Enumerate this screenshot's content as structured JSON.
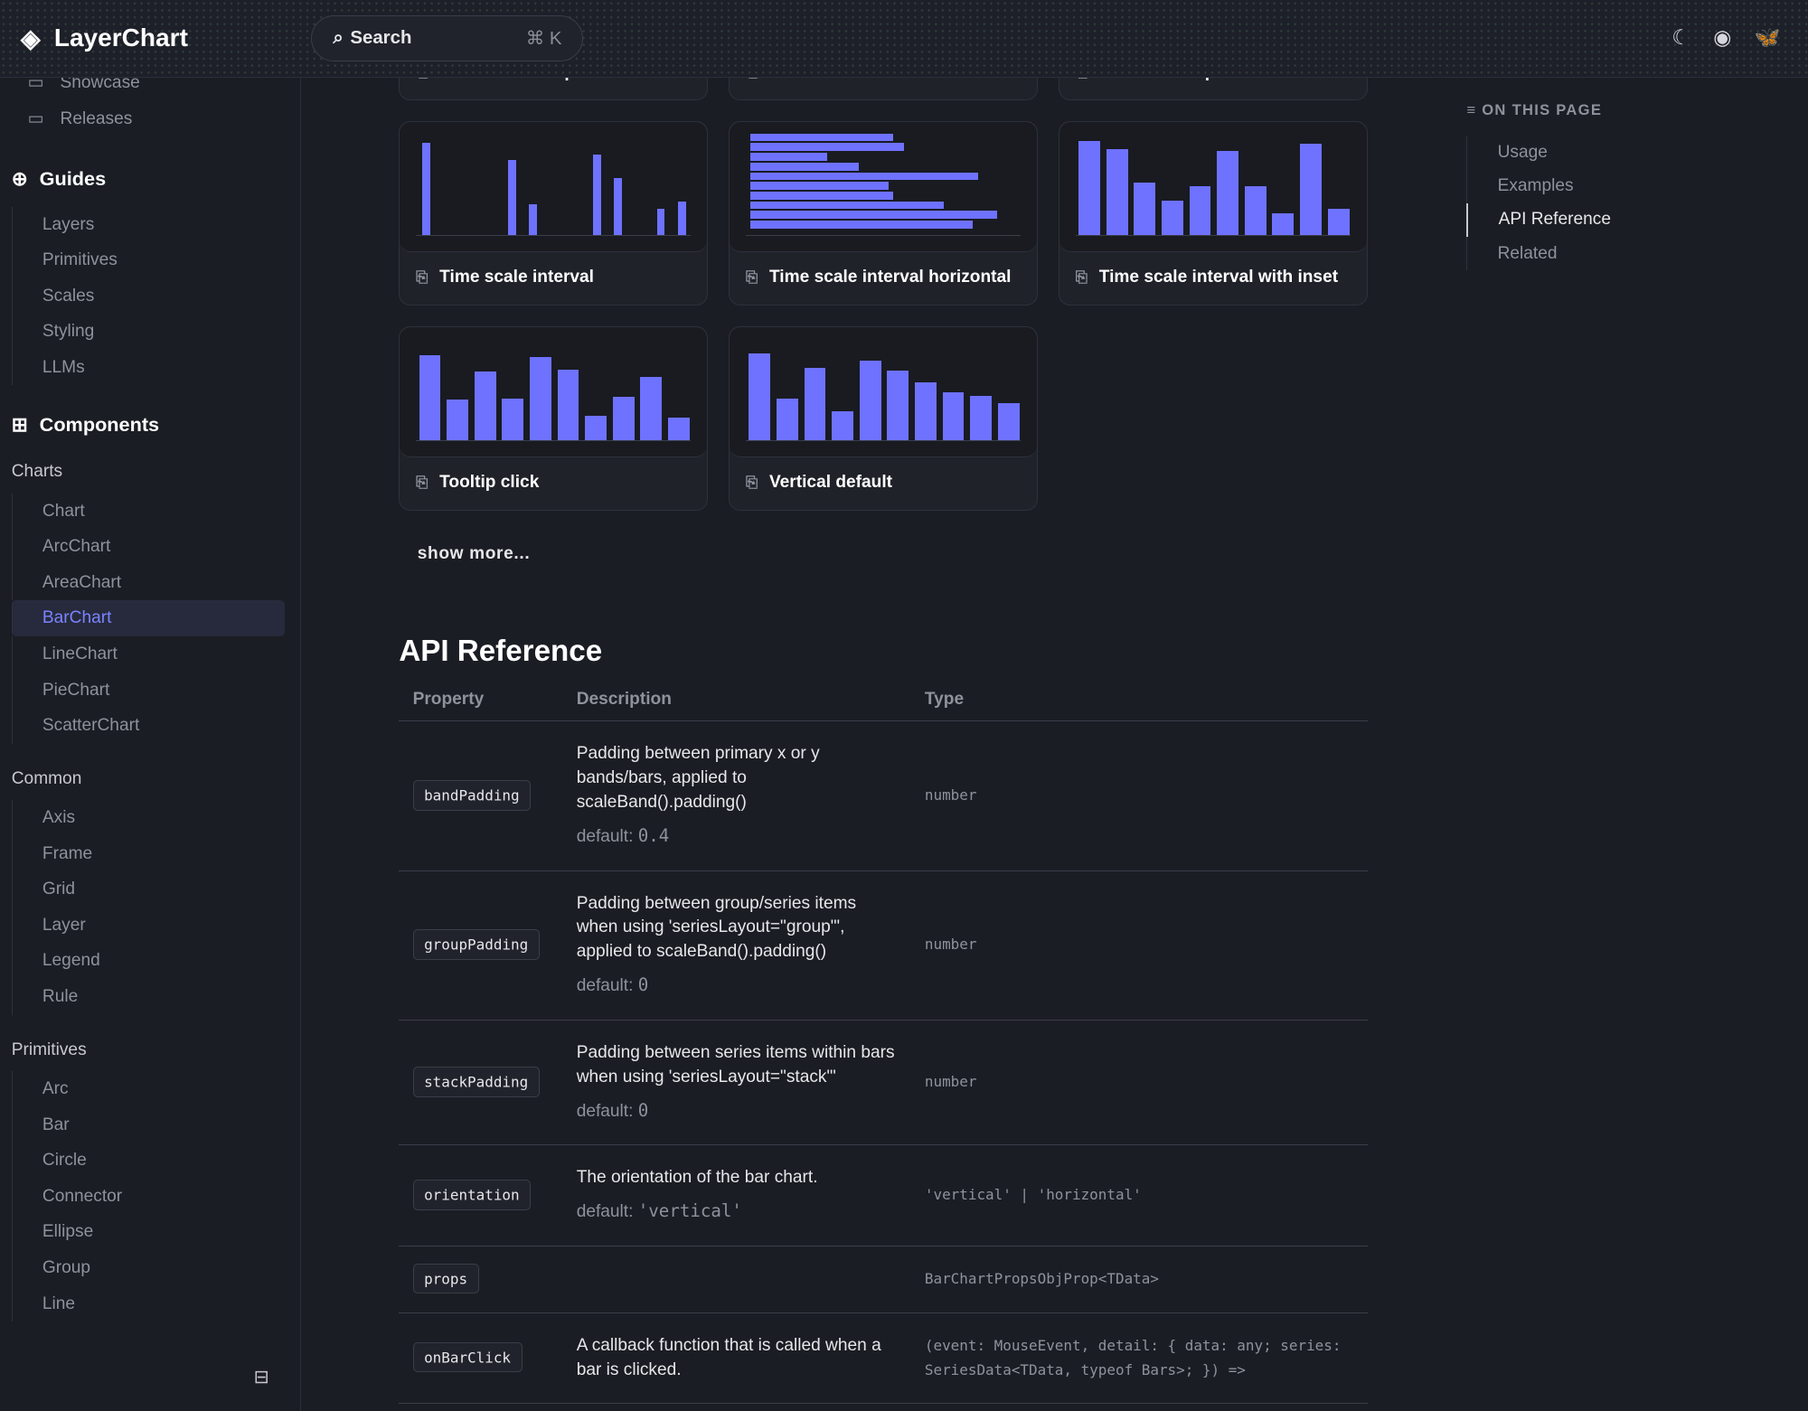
{
  "header": {
    "brand": "LayerChart",
    "search_label": "Search",
    "search_shortcut": "⌘ K"
  },
  "sidebar": {
    "top_items": [
      {
        "label": "Showcase",
        "icon": "monitor-icon"
      },
      {
        "label": "Releases",
        "icon": "notebook-icon"
      }
    ],
    "guides": {
      "title": "Guides",
      "items": [
        "Layers",
        "Primitives",
        "Scales",
        "Styling",
        "LLMs"
      ]
    },
    "components": {
      "title": "Components"
    },
    "charts": {
      "title": "Charts",
      "items": [
        "Chart",
        "ArcChart",
        "AreaChart",
        "BarChart",
        "LineChart",
        "PieChart",
        "ScatterChart"
      ],
      "active": "BarChart"
    },
    "common": {
      "title": "Common",
      "items": [
        "Axis",
        "Frame",
        "Grid",
        "Layer",
        "Legend",
        "Rule"
      ]
    },
    "primitives": {
      "title": "Primitives",
      "items": [
        "Arc",
        "Bar",
        "Circle",
        "Connector",
        "Ellipse",
        "Group",
        "Line"
      ]
    }
  },
  "examples": {
    "partial": [
      "Stack series expand",
      "Stack series horizontal",
      "Stack series padded"
    ],
    "cards": [
      {
        "label": "Time scale interval",
        "orientation": "vertical",
        "slots": 13,
        "values": [
          9.5,
          0,
          0,
          0,
          7.7,
          3.2,
          0,
          0,
          8.3,
          5.9,
          0,
          2.7,
          3.4
        ]
      },
      {
        "label": "Time scale interval horizontal",
        "orientation": "horizontal",
        "values": [
          5.4,
          5.8,
          2.9,
          4.1,
          8.6,
          5.2,
          5.4,
          7.3,
          9.3,
          8.4
        ]
      },
      {
        "label": "Time scale interval with inset",
        "orientation": "vertical",
        "values": [
          9.7,
          8.9,
          5.4,
          3.5,
          5.0,
          8.7,
          5.0,
          2.2,
          9.4,
          2.7
        ]
      },
      {
        "label": "Tooltip click",
        "orientation": "vertical",
        "values": [
          8.8,
          4.2,
          7.1,
          4.3,
          8.6,
          7.3,
          2.5,
          4.5,
          6.5,
          2.3
        ]
      },
      {
        "label": "Vertical default",
        "orientation": "vertical",
        "values": [
          9.0,
          4.3,
          7.5,
          3.0,
          8.2,
          7.2,
          6.0,
          4.9,
          4.6,
          3.8
        ]
      }
    ],
    "bar_color": "#6e72ff",
    "show_more": "show more..."
  },
  "api": {
    "title": "API Reference",
    "columns": [
      "Property",
      "Description",
      "Type"
    ],
    "rows": [
      {
        "prop": "bandPadding",
        "desc": "Padding between primary x or y bands/bars, applied to scaleBand().padding()",
        "default_label": "default:",
        "default": "0.4",
        "type": "number"
      },
      {
        "prop": "groupPadding",
        "desc": "Padding between group/series items when using 'seriesLayout=\"group\"', applied to scaleBand().padding()",
        "default_label": "default:",
        "default": "0",
        "type": "number"
      },
      {
        "prop": "stackPadding",
        "desc": "Padding between series items within bars when using 'seriesLayout=\"stack\"'",
        "default_label": "default:",
        "default": "0",
        "type": "number"
      },
      {
        "prop": "orientation",
        "desc": "The orientation of the bar chart.",
        "default_label": "default:",
        "default": "'vertical'",
        "type": "'vertical' | 'horizontal'"
      },
      {
        "prop": "props",
        "desc": "",
        "type": "BarChartPropsObjProp<TData>"
      },
      {
        "prop": "onBarClick",
        "desc": "A callback function that is called when a bar is clicked.",
        "type": "(event: MouseEvent, detail: { data: any; series: SeriesData<TData, typeof Bars>; }) =>"
      }
    ]
  },
  "toc": {
    "title": "ON THIS PAGE",
    "items": [
      "Usage",
      "Examples",
      "API Reference",
      "Related"
    ],
    "active": "API Reference"
  }
}
